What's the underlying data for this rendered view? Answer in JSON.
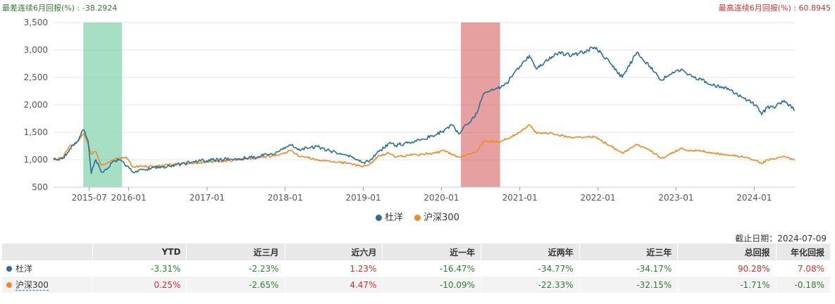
{
  "header": {
    "worst_label": "最差连续6月回报(%) : -38.2924",
    "best_label": "最高连续6月回报(%) : 60.8945"
  },
  "colors": {
    "fund": "#2a6f97",
    "index": "#f08a24",
    "worst_band": "#5fc594",
    "best_band": "#d15252",
    "pos": "#d32f2f",
    "neg": "#2e7d32"
  },
  "chart_data": {
    "type": "line",
    "ylim": [
      500,
      3500
    ],
    "yticks": [
      500,
      1000,
      1500,
      2000,
      2500,
      3000,
      3500
    ],
    "ytick_labels": [
      "500",
      "1,000",
      "1,500",
      "2,000",
      "2,500",
      "3,000",
      "3,500"
    ],
    "xlim": [
      "2015-01-15",
      "2024-07-09"
    ],
    "xticks": [
      "2015-07-01",
      "2016-01-01",
      "2017-01-01",
      "2018-01-01",
      "2019-01-01",
      "2020-01-01",
      "2021-01-01",
      "2022-01-01",
      "2023-01-01",
      "2024-01-01"
    ],
    "xtick_labels": [
      "2015-07",
      "2016-01",
      "2017-01",
      "2018-01",
      "2019-01",
      "2020-01",
      "2021-01",
      "2022-01",
      "2023-01",
      "2024-01"
    ],
    "bands": [
      {
        "kind": "worst",
        "start": "2015-06-03",
        "end": "2015-12-01"
      },
      {
        "kind": "best",
        "start": "2020-04-01",
        "end": "2020-10-01"
      }
    ],
    "series": [
      {
        "name": "杜洋",
        "color": "#2a6f97",
        "points": [
          [
            "2015-01-15",
            1000
          ],
          [
            "2015-03-01",
            1030
          ],
          [
            "2015-04-01",
            1200
          ],
          [
            "2015-05-01",
            1300
          ],
          [
            "2015-06-05",
            1550
          ],
          [
            "2015-06-25",
            1350
          ],
          [
            "2015-07-10",
            750
          ],
          [
            "2015-08-01",
            1000
          ],
          [
            "2015-08-25",
            780
          ],
          [
            "2015-09-20",
            820
          ],
          [
            "2015-10-20",
            970
          ],
          [
            "2015-11-20",
            1000
          ],
          [
            "2015-12-20",
            880
          ],
          [
            "2016-01-20",
            780
          ],
          [
            "2016-03-01",
            830
          ],
          [
            "2016-06-01",
            870
          ],
          [
            "2016-09-01",
            920
          ],
          [
            "2016-12-01",
            980
          ],
          [
            "2017-03-01",
            1000
          ],
          [
            "2017-06-01",
            1020
          ],
          [
            "2017-09-01",
            1060
          ],
          [
            "2017-12-01",
            1150
          ],
          [
            "2018-01-25",
            1270
          ],
          [
            "2018-03-01",
            1180
          ],
          [
            "2018-06-01",
            1240
          ],
          [
            "2018-08-01",
            1160
          ],
          [
            "2018-10-20",
            1080
          ],
          [
            "2018-12-28",
            950
          ],
          [
            "2019-02-01",
            990
          ],
          [
            "2019-03-15",
            1150
          ],
          [
            "2019-05-01",
            1300
          ],
          [
            "2019-06-01",
            1260
          ],
          [
            "2019-08-01",
            1320
          ],
          [
            "2019-10-01",
            1380
          ],
          [
            "2019-12-01",
            1440
          ],
          [
            "2020-01-15",
            1540
          ],
          [
            "2020-02-20",
            1630
          ],
          [
            "2020-03-20",
            1480
          ],
          [
            "2020-05-01",
            1650
          ],
          [
            "2020-06-15",
            1850
          ],
          [
            "2020-07-15",
            2200
          ],
          [
            "2020-08-15",
            2250
          ],
          [
            "2020-09-20",
            2300
          ],
          [
            "2020-11-01",
            2400
          ],
          [
            "2021-01-01",
            2700
          ],
          [
            "2021-02-15",
            2900
          ],
          [
            "2021-03-20",
            2650
          ],
          [
            "2021-05-01",
            2800
          ],
          [
            "2021-07-01",
            2950
          ],
          [
            "2021-09-01",
            2900
          ],
          [
            "2021-11-01",
            2970
          ],
          [
            "2021-12-15",
            3050
          ],
          [
            "2022-01-15",
            2950
          ],
          [
            "2022-03-01",
            2750
          ],
          [
            "2022-04-25",
            2500
          ],
          [
            "2022-07-01",
            2950
          ],
          [
            "2022-09-01",
            2700
          ],
          [
            "2022-10-25",
            2450
          ],
          [
            "2022-12-01",
            2550
          ],
          [
            "2023-01-25",
            2650
          ],
          [
            "2023-03-01",
            2550
          ],
          [
            "2023-05-01",
            2450
          ],
          [
            "2023-07-01",
            2350
          ],
          [
            "2023-09-01",
            2300
          ],
          [
            "2023-11-01",
            2150
          ],
          [
            "2024-01-10",
            2000
          ],
          [
            "2024-02-05",
            1820
          ],
          [
            "2024-03-01",
            1950
          ],
          [
            "2024-04-01",
            1950
          ],
          [
            "2024-05-20",
            2080
          ],
          [
            "2024-07-09",
            1900
          ]
        ]
      },
      {
        "name": "沪深300",
        "color": "#f08a24",
        "points": [
          [
            "2015-01-15",
            1000
          ],
          [
            "2015-03-01",
            1050
          ],
          [
            "2015-04-01",
            1250
          ],
          [
            "2015-05-01",
            1300
          ],
          [
            "2015-06-05",
            1480
          ],
          [
            "2015-06-25",
            1300
          ],
          [
            "2015-07-10",
            1100
          ],
          [
            "2015-08-01",
            1150
          ],
          [
            "2015-08-25",
            900
          ],
          [
            "2015-09-20",
            930
          ],
          [
            "2015-10-20",
            1000
          ],
          [
            "2015-12-20",
            1050
          ],
          [
            "2016-01-20",
            870
          ],
          [
            "2016-03-01",
            880
          ],
          [
            "2016-06-01",
            890
          ],
          [
            "2016-09-01",
            930
          ],
          [
            "2016-12-01",
            950
          ],
          [
            "2017-03-01",
            970
          ],
          [
            "2017-06-01",
            1000
          ],
          [
            "2017-09-01",
            1040
          ],
          [
            "2017-12-01",
            1080
          ],
          [
            "2018-01-25",
            1170
          ],
          [
            "2018-03-01",
            1080
          ],
          [
            "2018-06-01",
            1000
          ],
          [
            "2018-08-01",
            960
          ],
          [
            "2018-10-20",
            940
          ],
          [
            "2018-12-28",
            870
          ],
          [
            "2019-02-01",
            920
          ],
          [
            "2019-03-15",
            1080
          ],
          [
            "2019-05-01",
            1120
          ],
          [
            "2019-06-01",
            1050
          ],
          [
            "2019-08-01",
            1080
          ],
          [
            "2019-10-01",
            1100
          ],
          [
            "2019-12-01",
            1120
          ],
          [
            "2020-01-15",
            1170
          ],
          [
            "2020-02-20",
            1100
          ],
          [
            "2020-03-20",
            1050
          ],
          [
            "2020-05-01",
            1100
          ],
          [
            "2020-06-15",
            1150
          ],
          [
            "2020-07-15",
            1330
          ],
          [
            "2020-08-15",
            1340
          ],
          [
            "2020-09-20",
            1320
          ],
          [
            "2020-11-01",
            1380
          ],
          [
            "2021-01-01",
            1500
          ],
          [
            "2021-02-15",
            1640
          ],
          [
            "2021-03-20",
            1480
          ],
          [
            "2021-05-01",
            1500
          ],
          [
            "2021-07-01",
            1450
          ],
          [
            "2021-09-01",
            1400
          ],
          [
            "2021-11-01",
            1410
          ],
          [
            "2021-12-15",
            1420
          ],
          [
            "2022-01-15",
            1350
          ],
          [
            "2022-03-01",
            1250
          ],
          [
            "2022-04-25",
            1120
          ],
          [
            "2022-07-01",
            1280
          ],
          [
            "2022-09-01",
            1170
          ],
          [
            "2022-10-25",
            1030
          ],
          [
            "2022-12-01",
            1100
          ],
          [
            "2023-01-25",
            1200
          ],
          [
            "2023-03-01",
            1170
          ],
          [
            "2023-05-01",
            1160
          ],
          [
            "2023-07-01",
            1120
          ],
          [
            "2023-09-01",
            1080
          ],
          [
            "2023-11-01",
            1060
          ],
          [
            "2024-01-10",
            980
          ],
          [
            "2024-02-05",
            930
          ],
          [
            "2024-03-01",
            1000
          ],
          [
            "2024-04-01",
            1010
          ],
          [
            "2024-05-20",
            1060
          ],
          [
            "2024-07-09",
            990
          ]
        ]
      }
    ]
  },
  "legend": {
    "fund": "杜洋",
    "index": "沪深300"
  },
  "as_of": "截止日期：2024-07-09",
  "table": {
    "headers": [
      "",
      "YTD",
      "近三月",
      "近六月",
      "近一年",
      "近两年",
      "近三年",
      "总回报",
      "年化回报"
    ],
    "rows": [
      {
        "name": "杜洋",
        "color": "#2a6f97",
        "values": [
          "-3.31%",
          "-2.23%",
          "1.23%",
          "-16.47%",
          "-34.77%",
          "-34.17%",
          "90.28%",
          "7.08%"
        ]
      },
      {
        "name": "沪深300",
        "color": "#f08a24",
        "values": [
          "0.25%",
          "-2.65%",
          "4.47%",
          "-10.09%",
          "-22.33%",
          "-32.15%",
          "-1.71%",
          "-0.18%"
        ]
      }
    ]
  }
}
